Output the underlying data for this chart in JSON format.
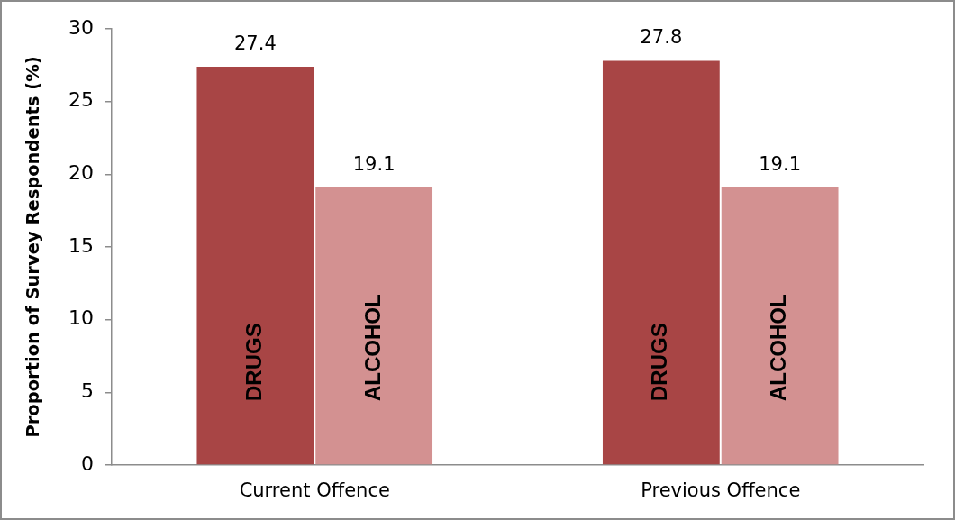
{
  "chart_data": {
    "type": "bar",
    "ylabel": "Proportion of Survey Respondents (%)",
    "categories": [
      "Current Offence",
      "Previous Offence"
    ],
    "series": [
      {
        "name": "DRUGS",
        "color": "#a84545",
        "values": [
          27.4,
          27.8
        ]
      },
      {
        "name": "ALCOHOL",
        "color": "#d39191",
        "values": [
          19.1,
          19.1
        ]
      }
    ],
    "ylim": [
      0,
      30
    ],
    "yticks": [
      0,
      5,
      10,
      15,
      20,
      25,
      30
    ],
    "data_labels": true,
    "legend": false,
    "grid": false
  }
}
